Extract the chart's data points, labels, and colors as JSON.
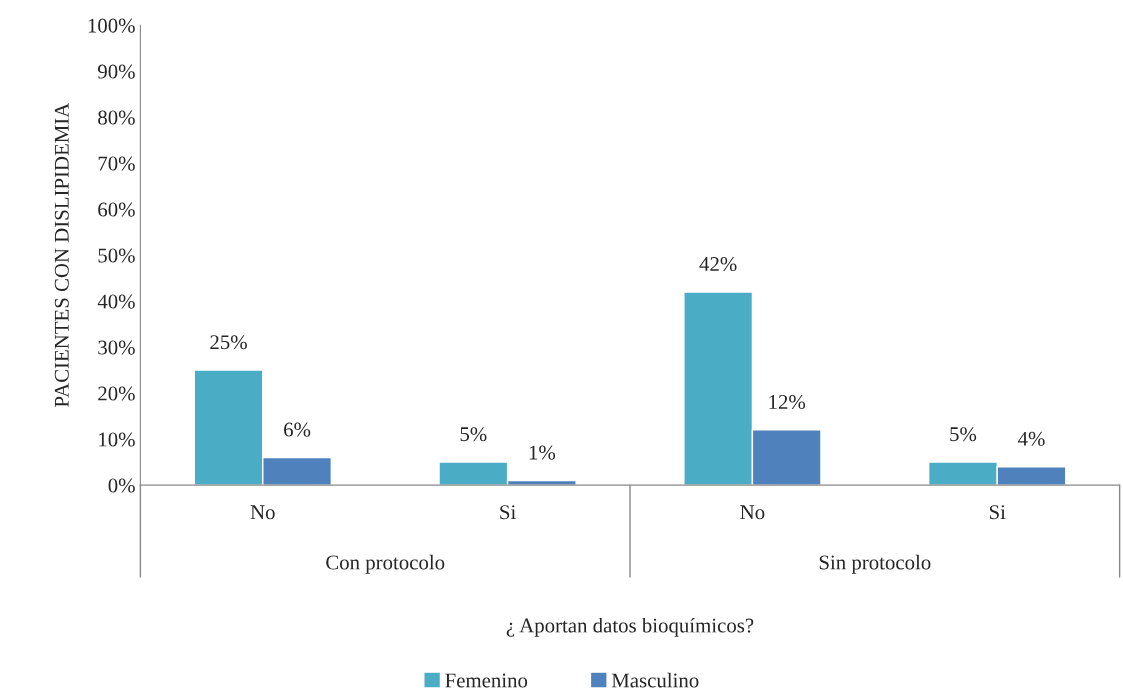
{
  "chart_data": {
    "type": "bar",
    "xlabel": "¿ Aportan datos bioquímicos?",
    "ylabel": "PACIENTES CON DISLIPIDEMIA",
    "categories": [
      "No",
      "Si",
      "No",
      "Si"
    ],
    "annotations": [
      "Con protocolo",
      "Sin protocolo"
    ],
    "series": [
      {
        "name": "Femenino",
        "color": "#4bacc6",
        "values": [
          25,
          5,
          42,
          5
        ],
        "value_labels": [
          "25%",
          "5%",
          "42%",
          "5%"
        ]
      },
      {
        "name": "Masculino",
        "color": "#4f81bd",
        "values": [
          6,
          1,
          12,
          4
        ],
        "value_labels": [
          "6%",
          "1%",
          "12%",
          "4%"
        ]
      }
    ],
    "ylim": [
      0,
      100
    ],
    "yticks": [
      {
        "value": 0,
        "label": "0%"
      },
      {
        "value": 10,
        "label": "10%"
      },
      {
        "value": 20,
        "label": "20%"
      },
      {
        "value": 30,
        "label": "30%"
      },
      {
        "value": 40,
        "label": "40%"
      },
      {
        "value": 50,
        "label": "50%"
      },
      {
        "value": 60,
        "label": "60%"
      },
      {
        "value": 70,
        "label": "70%"
      },
      {
        "value": 80,
        "label": "80%"
      },
      {
        "value": 90,
        "label": "90%"
      },
      {
        "value": 100,
        "label": "100%"
      }
    ],
    "grid": false,
    "legend": "bottom"
  }
}
